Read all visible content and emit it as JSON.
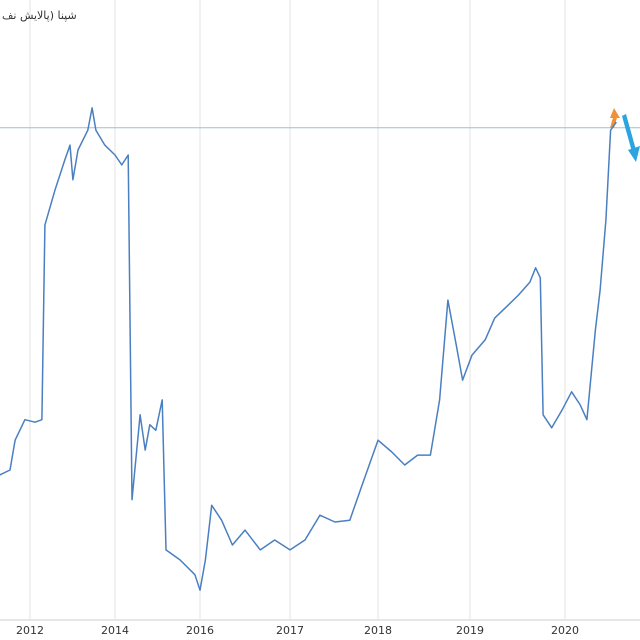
{
  "chart_data": {
    "type": "line",
    "title": "شپنا (پالایش نف",
    "x": [
      2011.29,
      2011.53,
      2011.65,
      2011.88,
      2012.12,
      2012.28,
      2012.35,
      2012.59,
      2012.82,
      2012.94,
      2013.01,
      2013.13,
      2013.36,
      2013.46,
      2013.55,
      2013.76,
      2014.0,
      2014.16,
      2014.31,
      2014.4,
      2014.59,
      2014.71,
      2014.82,
      2014.96,
      2015.11,
      2015.2,
      2015.53,
      2015.88,
      2016.0,
      2016.06,
      2016.13,
      2016.24,
      2016.36,
      2016.5,
      2016.67,
      2016.83,
      2017.0,
      2017.17,
      2017.34,
      2017.51,
      2017.68,
      2017.82,
      2018.0,
      2018.15,
      2018.29,
      2018.43,
      2018.57,
      2018.67,
      2018.76,
      2018.85,
      2018.92,
      2019.02,
      2019.16,
      2019.26,
      2019.37,
      2019.51,
      2019.63,
      2019.69,
      2019.74,
      2019.77,
      2019.86,
      2019.97,
      2020.07,
      2020.16,
      2020.23,
      2020.32,
      2020.37,
      2020.43,
      2020.48,
      2020.54
    ],
    "series": [
      {
        "color": "#4a7fc1",
        "values": [
          23.4,
          24.2,
          29.0,
          32.3,
          31.9,
          32.3,
          63.7,
          69.4,
          74.2,
          76.6,
          71.0,
          75.8,
          79.0,
          82.6,
          79.0,
          76.6,
          75.0,
          73.4,
          75.0,
          19.4,
          33.1,
          27.4,
          31.5,
          30.6,
          35.5,
          11.3,
          9.7,
          7.3,
          4.8,
          9.7,
          18.5,
          16.1,
          12.1,
          14.5,
          11.3,
          12.9,
          11.3,
          12.9,
          16.9,
          15.8,
          16.1,
          21.8,
          29.0,
          27.1,
          25.0,
          26.6,
          26.6,
          35.5,
          51.6,
          44.4,
          38.7,
          42.7,
          45.2,
          48.7,
          50.3,
          52.4,
          54.5,
          56.8,
          55.2,
          33.1,
          31.0,
          33.9,
          36.8,
          34.7,
          32.3,
          46.8,
          53.2,
          64.5,
          79.0,
          80.3
        ]
      }
    ],
    "reference_line": 79.4,
    "ylim": [
      0,
      100
    ],
    "xticks": [
      2012,
      2014,
      2016,
      2017,
      2018,
      2019,
      2020
    ],
    "grid": true
  }
}
